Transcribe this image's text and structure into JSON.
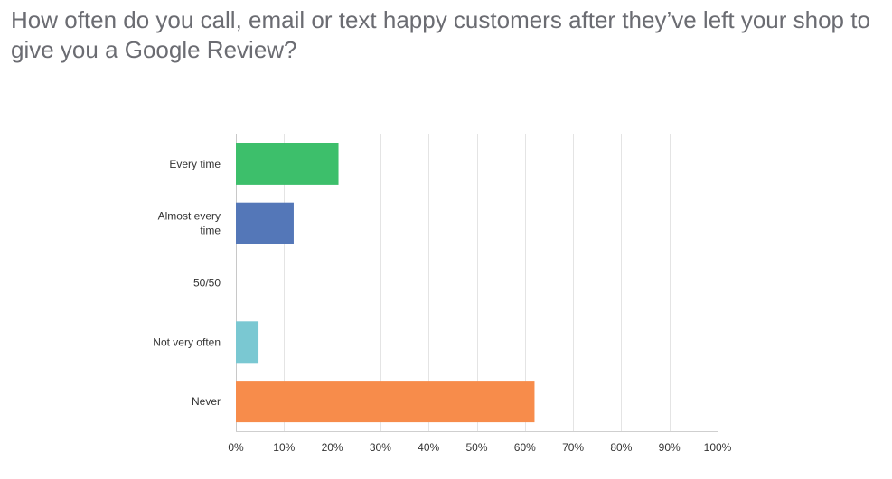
{
  "question": {
    "title": "How often do you call, email or text happy customers after they’ve left your shop to give you a Google Review?"
  },
  "chart_data": {
    "type": "bar",
    "orientation": "horizontal",
    "title": "How often do you call, email or text happy customers after they’ve left your shop to give you a Google Review?",
    "categories": [
      "Every time",
      "Almost every time",
      "50/50",
      "Not very often",
      "Never"
    ],
    "category_lines": [
      [
        "Every time"
      ],
      [
        "Almost every",
        "time"
      ],
      [
        "50/50"
      ],
      [
        "Not very often"
      ],
      [
        "Never"
      ]
    ],
    "values": [
      21.3,
      12,
      0,
      4.7,
      62
    ],
    "value_unit": "%",
    "colors": [
      "#3dbf6b",
      "#5477b8",
      "#e0e0e0",
      "#7ac8d2",
      "#f78c4b"
    ],
    "xlim": [
      0,
      100
    ],
    "ticks": [
      0,
      10,
      20,
      30,
      40,
      50,
      60,
      70,
      80,
      90,
      100
    ],
    "tick_labels": [
      "0%",
      "10%",
      "20%",
      "30%",
      "40%",
      "50%",
      "60%",
      "70%",
      "80%",
      "90%",
      "100%"
    ],
    "xlabel": "",
    "ylabel": "",
    "grid": true,
    "legend": "none"
  }
}
